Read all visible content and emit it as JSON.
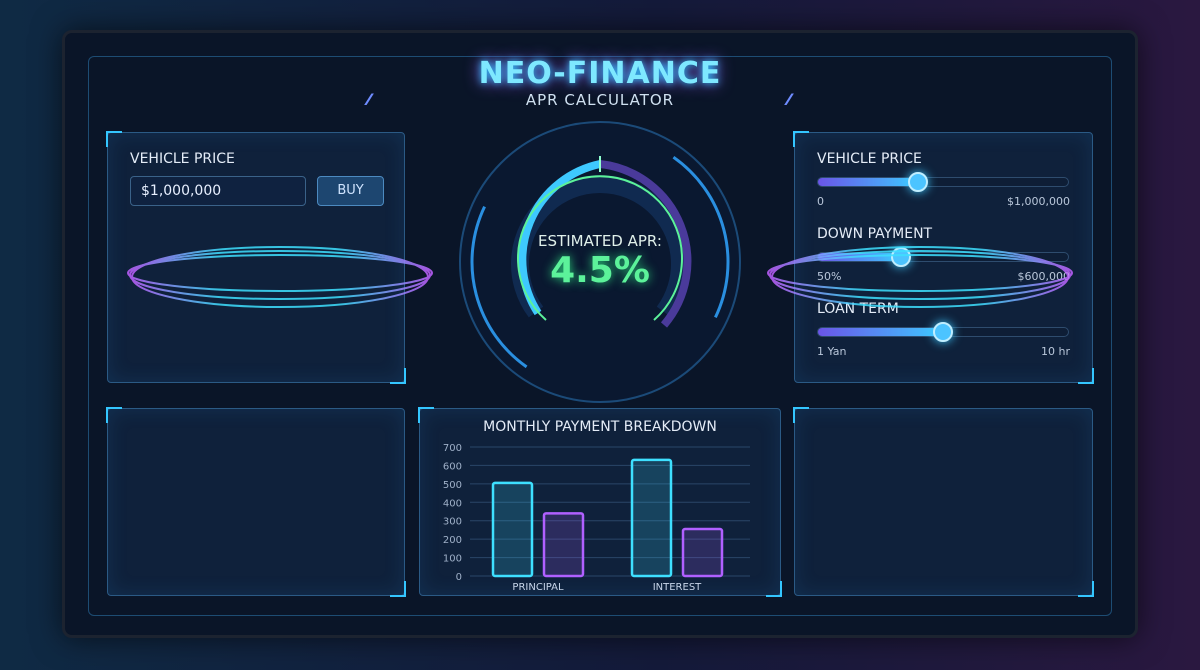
{
  "header": {
    "title": "NEO-FINANCE",
    "subtitle": "APR CALCULATOR"
  },
  "left_panel": {
    "label": "VEHICLE PRICE",
    "input_value": "$1,000,000",
    "buy_label": "BUY"
  },
  "gauge": {
    "label": "ESTIMATED APR:",
    "value": "4.5%"
  },
  "sliders": [
    {
      "label": "VEHICLE PRICE",
      "min_label": "0",
      "max_label": "$1,000,000",
      "fraction": 0.4
    },
    {
      "label": "DOWN PAYMENT",
      "min_label": "50%",
      "max_label": "$600,000",
      "fraction": 0.33
    },
    {
      "label": "LOAN TERM",
      "min_label": "1 Yan",
      "max_label": "10 hr",
      "fraction": 0.5
    }
  ],
  "colors": {
    "cyan": "#3ee0ff",
    "purple": "#b060ff",
    "green": "#5cf29a"
  },
  "chart_data": {
    "type": "bar",
    "title": "MONTHLY PAYMENT BREAKDOWN",
    "categories": [
      "PRINCIPAL",
      "INTEREST"
    ],
    "series": [
      {
        "values": [
          505,
          630
        ],
        "color": "#3ee0ff"
      },
      {
        "values": [
          340,
          255
        ],
        "color": "#b060ff"
      }
    ],
    "ylim": [
      0,
      700
    ],
    "yticks": [
      "0",
      "100",
      "200",
      "300",
      "400",
      "500",
      "600",
      "700"
    ],
    "grid": true
  }
}
